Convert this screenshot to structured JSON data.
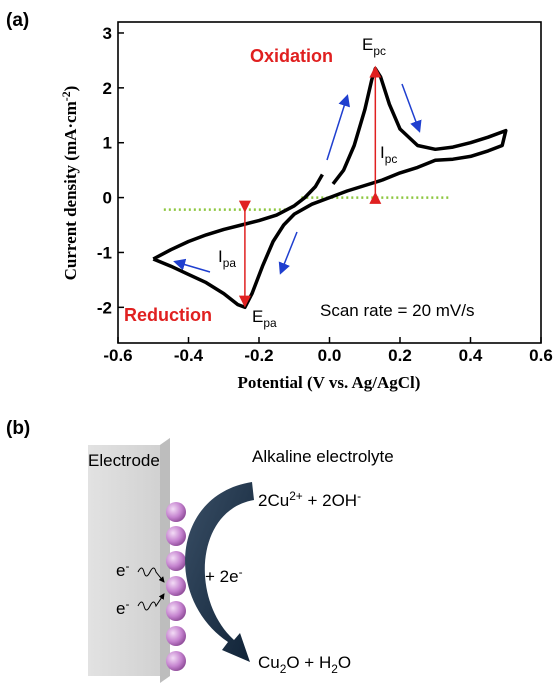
{
  "chart_data": {
    "type": "line",
    "panel_label": "(a)",
    "xlabel": "Potential (V vs. Ag/AgCl)",
    "ylabel": [
      {
        "text": "Current density (mA·cm"
      },
      {
        "text": "-2",
        "sup": true
      },
      {
        "text": ")"
      }
    ],
    "xlim": [
      -0.6,
      0.6
    ],
    "ylim": [
      -2.65,
      3.2
    ],
    "xticks": [
      -0.6,
      -0.4,
      -0.2,
      {
        "value": 0,
        "label": "0.0"
      },
      0.2,
      0.4,
      0.6
    ],
    "yticks": [
      -2,
      -1,
      0,
      1,
      2,
      3
    ],
    "series": [
      {
        "color": "#000000",
        "x": [
          -0.5,
          -0.45,
          -0.4,
          -0.35,
          -0.3,
          -0.25,
          -0.2,
          -0.15,
          -0.1,
          -0.07,
          -0.04,
          -0.02,
          -0.005,
          0.01,
          0.04,
          0.07,
          0.1,
          0.12,
          0.13,
          0.145,
          0.17,
          0.2,
          0.25,
          0.3,
          0.35,
          0.4,
          0.45,
          0.5,
          0.49,
          0.45,
          0.4,
          0.35,
          0.3,
          0.25,
          0.2,
          0.15,
          0.1,
          0.05,
          0.0,
          -0.05,
          -0.1,
          -0.13,
          -0.16,
          -0.19,
          -0.22,
          -0.24,
          -0.26,
          -0.3,
          -0.35,
          -0.4,
          -0.45,
          -0.5
        ],
        "values": [
          -1.12,
          -0.95,
          -0.8,
          -0.68,
          -0.58,
          -0.5,
          -0.42,
          -0.32,
          -0.15,
          0.0,
          0.2,
          0.42,
          null,
          0.25,
          0.5,
          0.95,
          1.6,
          2.15,
          2.35,
          2.2,
          1.7,
          1.25,
          0.95,
          0.88,
          0.92,
          1.0,
          1.1,
          1.22,
          0.95,
          0.85,
          0.75,
          0.7,
          0.68,
          0.55,
          0.45,
          0.32,
          0.22,
          0.12,
          0.0,
          -0.12,
          -0.3,
          -0.5,
          -0.8,
          -1.25,
          -1.75,
          -2.0,
          -1.95,
          -1.75,
          -1.55,
          -1.4,
          -1.25,
          -1.12
        ]
      }
    ],
    "reference_lines": {
      "color": "#8dc63f",
      "lines": [
        {
          "x": [
            -0.47,
            -0.12
          ],
          "y": -0.22
        },
        {
          "x": [
            -0.08,
            0.34
          ],
          "y": 0
        }
      ]
    },
    "current_arrows": {
      "color": "#e02020",
      "arrows": [
        {
          "x": 0.13,
          "from": 0.05,
          "to": 2.35
        },
        {
          "x": -0.24,
          "from": -0.22,
          "to": -1.95
        }
      ]
    },
    "annotations": {
      "oxidation": "Oxidation",
      "reduction": "Reduction",
      "scan_rate": "Scan rate = 20 mV/s",
      "epc": [
        {
          "text": "E"
        },
        {
          "text": "pc",
          "sub": true
        }
      ],
      "ipc": [
        {
          "text": "I"
        },
        {
          "text": "pc",
          "sub": true
        }
      ],
      "ipa": [
        {
          "text": "I"
        },
        {
          "text": "pa",
          "sub": true
        }
      ],
      "epa": [
        {
          "text": "E"
        },
        {
          "text": "pa",
          "sub": true
        }
      ]
    }
  },
  "diagram": {
    "label": "(b)",
    "electrode": "Electrode",
    "electrolyte": "Alkaline electrolyte",
    "reactants": [
      {
        "text": "2Cu"
      },
      {
        "text": "2+",
        "sup": true
      },
      {
        "text": " + 2OH"
      },
      {
        "text": "-",
        "sup": true
      }
    ],
    "electrons_added": [
      {
        "text": "+ 2e"
      },
      {
        "text": "-",
        "sup": true
      }
    ],
    "products": [
      {
        "text": "Cu"
      },
      {
        "text": "2",
        "sub": true
      },
      {
        "text": "O + H"
      },
      {
        "text": "2",
        "sub": true
      },
      {
        "text": "O"
      }
    ],
    "electron": [
      {
        "text": "e"
      },
      {
        "text": "-",
        "sup": true
      }
    ]
  }
}
